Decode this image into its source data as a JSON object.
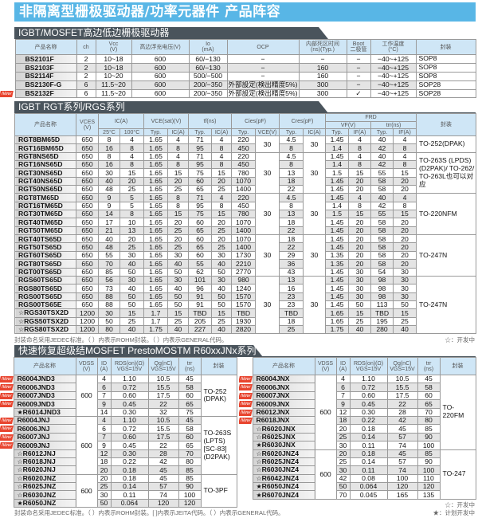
{
  "title": "非隔离型栅极驱动器/功率元器件 产品阵容",
  "gate_driver": {
    "section_title": "IGBT/MOSFET高边低边栅极驱动器",
    "headers": [
      "产品名称",
      "ch",
      "Vcc\n(V)",
      "高边浮充电压(V)",
      "Io\n(mA)",
      "OCP",
      "内部死区时间\n(ns)(Typ.)",
      "Boot\n二极管",
      "工作温度\n(°C)",
      "封装"
    ],
    "rows": [
      {
        "badge": "",
        "cells": [
          "BS2101F",
          "2",
          "10~18",
          "600",
          "60/−130",
          "−",
          "−",
          "−",
          "−40~+125",
          "SOP8"
        ]
      },
      {
        "badge": "",
        "cells": [
          "BS2103F",
          "2",
          "10~18",
          "600",
          "60/−130",
          "−",
          "160",
          "−",
          "−40~+125",
          "SOP8"
        ]
      },
      {
        "badge": "",
        "cells": [
          "BS2114F",
          "2",
          "10~20",
          "600",
          "500/−500",
          "−",
          "160",
          "−",
          "−40~+125",
          "SOP8"
        ]
      },
      {
        "badge": "",
        "cells": [
          "BS2130F-G",
          "6",
          "11.5~20",
          "600",
          "200/−350",
          "外部設定(検出精度5%)",
          "300",
          "−",
          "−40~+125",
          "SOP28"
        ]
      },
      {
        "badge": "New",
        "cells": [
          "BS2132F",
          "6",
          "11.5~20",
          "600",
          "200/−350",
          "外部設定(検出精度5%)",
          "300",
          "✓",
          "−40~+125",
          "SOP28"
        ]
      }
    ]
  },
  "igbt": {
    "section_title": "IGBT RGT系列/RGS系列",
    "headers": {
      "name": "产品名称",
      "vces": "VCES\n(V)",
      "ic": "IC(A)",
      "ic25": "25°C",
      "ic100": "100°C",
      "vcesat": "VCE(sat)(V)",
      "tf": "tf(ns)",
      "cies": "Cies(pF)",
      "cres": "Cres(pF)",
      "frd": "FRD",
      "vf": "VF(V)",
      "trr": "trr(ns)",
      "pkg": "封装",
      "typ": "Typ.",
      "ic_a": "IC(A)",
      "vce_v": "VCE(V)",
      "if_a": "IF(A)"
    },
    "groups": [
      {
        "cies_vce": "30",
        "cres_ic": "30",
        "package": "TO-252(DPAK)",
        "rows": [
          [
            "",
            "RGT8BM65D",
            "650",
            "8",
            "4",
            "1.65",
            "4",
            "71",
            "4",
            "220",
            "4.5",
            "1.45",
            "4",
            "40",
            "4"
          ],
          [
            "",
            "RGT16BM65D",
            "650",
            "16",
            "8",
            "1.65",
            "8",
            "95",
            "8",
            "450",
            "8",
            "1.4",
            "8",
            "42",
            "8"
          ]
        ]
      },
      {
        "cies_vce": "30",
        "cres_ic": "30",
        "package": "TO-263S (LPDS)(D2PAK)/ TO-262/ TO-263L也可以对应",
        "rows": [
          [
            "",
            "RGT8NS65D",
            "650",
            "8",
            "4",
            "1.65",
            "4",
            "71",
            "4",
            "220",
            "4.5",
            "1.45",
            "4",
            "40",
            "4"
          ],
          [
            "",
            "RGT16NS65D",
            "650",
            "16",
            "8",
            "1.65",
            "8",
            "95",
            "8",
            "450",
            "8",
            "1.4",
            "8",
            "42",
            "8"
          ],
          [
            "",
            "RGT30NS65D",
            "650",
            "30",
            "15",
            "1.65",
            "15",
            "75",
            "15",
            "780",
            "13",
            "1.5",
            "15",
            "55",
            "15"
          ],
          [
            "",
            "RGT40NS65D",
            "650",
            "40",
            "20",
            "1.65",
            "20",
            "60",
            "20",
            "1070",
            "18",
            "1.45",
            "20",
            "58",
            "20"
          ],
          [
            "",
            "RGT50NS65D",
            "650",
            "48",
            "25",
            "1.65",
            "25",
            "65",
            "25",
            "1400",
            "22",
            "1.45",
            "20",
            "58",
            "20"
          ]
        ]
      },
      {
        "cies_vce": "30",
        "cres_ic": "30",
        "package": "TO-220NFM",
        "rows": [
          [
            "",
            "RGT8TM65D",
            "650",
            "9",
            "5",
            "1.65",
            "8",
            "71",
            "4",
            "220",
            "4.5",
            "1.45",
            "4",
            "40",
            "4"
          ],
          [
            "",
            "RGT16TM65D",
            "650",
            "9",
            "5",
            "1.65",
            "8",
            "95",
            "8",
            "450",
            "8",
            "1.4",
            "8",
            "42",
            "8"
          ],
          [
            "",
            "RGT30TM65D",
            "650",
            "14",
            "8",
            "1.65",
            "15",
            "75",
            "15",
            "780",
            "13",
            "1.5",
            "15",
            "55",
            "15"
          ],
          [
            "",
            "RGT40TM65D",
            "650",
            "17",
            "10",
            "1.65",
            "20",
            "60",
            "20",
            "1070",
            "18",
            "1.45",
            "20",
            "58",
            "20"
          ],
          [
            "",
            "RGT50TM65D",
            "650",
            "21",
            "13",
            "1.65",
            "25",
            "65",
            "25",
            "1400",
            "22",
            "1.45",
            "20",
            "58",
            "20"
          ]
        ]
      },
      {
        "cies_vce": "30",
        "cres_ic": "30",
        "package": "TO-247N",
        "rows": [
          [
            "",
            "RGT40TS65D",
            "650",
            "40",
            "20",
            "1.65",
            "20",
            "60",
            "20",
            "1070",
            "18",
            "1.45",
            "20",
            "58",
            "20"
          ],
          [
            "",
            "RGT50TS65D",
            "650",
            "48",
            "25",
            "1.65",
            "25",
            "65",
            "25",
            "1400",
            "22",
            "1.45",
            "20",
            "58",
            "20"
          ],
          [
            "",
            "RGT60TS65D",
            "650",
            "55",
            "30",
            "1.65",
            "30",
            "60",
            "30",
            "1730",
            "29",
            "1.35",
            "20",
            "58",
            "20"
          ],
          [
            "",
            "RGT80TS65D",
            "650",
            "70",
            "40",
            "1.65",
            "40",
            "55",
            "40",
            "2210",
            "36",
            "1.35",
            "20",
            "58",
            "20"
          ],
          [
            "",
            "RGT00TS65D",
            "650",
            "85",
            "50",
            "1.65",
            "50",
            "62",
            "50",
            "2770",
            "43",
            "1.45",
            "30",
            "54",
            "30"
          ]
        ]
      },
      {
        "cies_vce": "30",
        "cres_ic": "30",
        "package": "TO-247N",
        "rows": [
          [
            "",
            "RGS60TS65D",
            "650",
            "56",
            "30",
            "1.65",
            "30",
            "101",
            "30",
            "980",
            "13",
            "1.45",
            "30",
            "98",
            "30"
          ],
          [
            "",
            "RGS80TS65D",
            "650",
            "73",
            "40",
            "1.65",
            "40",
            "96",
            "40",
            "1240",
            "16",
            "1.45",
            "30",
            "98",
            "30"
          ],
          [
            "",
            "RGS00TS65D",
            "650",
            "88",
            "50",
            "1.65",
            "50",
            "91",
            "50",
            "1570",
            "23",
            "1.45",
            "30",
            "98",
            "30"
          ],
          [
            "",
            "RGS00TS65E",
            "650",
            "88",
            "50",
            "1.65",
            "50",
            "91",
            "50",
            "1570",
            "23",
            "1.45",
            "50",
            "113",
            "50"
          ],
          [
            "☆",
            "RGS30TSX2D",
            "1200",
            "30",
            "15",
            "1.7",
            "15",
            "TBD",
            "15",
            "TBD",
            "TBD",
            "1.65",
            "15",
            "TBD",
            "15"
          ],
          [
            "☆",
            "RGS50TSX2D",
            "1200",
            "50",
            "25",
            "1.7",
            "25",
            "205",
            "25",
            "1930",
            "18",
            "1.65",
            "25",
            "195",
            "25"
          ],
          [
            "☆",
            "RGS80TSX2D",
            "1200",
            "80",
            "40",
            "1.75",
            "40",
            "227",
            "40",
            "2820",
            "25",
            "1.75",
            "40",
            "280",
            "40"
          ]
        ]
      }
    ],
    "note": "封装命名采用JEDEC标准。（ ）内表示ROHM封装。（ ）内表示GENERAL代码。",
    "legend": "☆：开发中"
  },
  "mosfet": {
    "section_title": "快速恢复超级结MOSFET PrestoMOSTM  R60xxJNx系列",
    "headers": [
      "产品名称",
      "VDSS\n(V)",
      "ID\n(A)",
      "RDS(on)(Ω)\nVGS=15V",
      "Qg(nC)\nVGS=15V",
      "trr\n(ns)",
      "封装"
    ],
    "left": [
      {
        "vdss": "600",
        "package": "TO-252 (DPAK)",
        "rows": [
          [
            "New",
            "R6004JND3",
            "4",
            "1.10",
            "10.5",
            "45"
          ],
          [
            "New",
            "R6006JND3",
            "6",
            "0.72",
            "15.5",
            "58"
          ],
          [
            "New",
            "R6007JND3",
            "7",
            "0.60",
            "17.5",
            "60"
          ],
          [
            "New",
            "R6009JND3",
            "9",
            "0.45",
            "22",
            "65"
          ],
          [
            "★",
            "R6014JND3",
            "14",
            "0.30",
            "32",
            "75"
          ]
        ]
      },
      {
        "vdss": "600",
        "package": "TO-263S (LPTS) [SC-83] (D2PAK)",
        "rows": [
          [
            "New",
            "R6004JNJ",
            "4",
            "1.10",
            "10.5",
            "45"
          ],
          [
            "New",
            "R6006JNJ",
            "6",
            "0.72",
            "15.5",
            "58"
          ],
          [
            "New",
            "R6007JNJ",
            "7",
            "0.60",
            "17.5",
            "60"
          ],
          [
            "New",
            "R6009JNJ",
            "9",
            "0.45",
            "22",
            "65"
          ],
          [
            "☆",
            "R6012JNJ",
            "12",
            "0.30",
            "28",
            "70"
          ],
          [
            "☆",
            "R6018JNJ",
            "18",
            "0.22",
            "42",
            "80"
          ],
          [
            "☆",
            "R6020JNJ",
            "20",
            "0.18",
            "45",
            "85"
          ]
        ]
      },
      {
        "vdss": "600",
        "package": "TO-3PF",
        "rows": [
          [
            "☆",
            "R6020JNZ",
            "20",
            "0.18",
            "45",
            "85"
          ],
          [
            "☆",
            "R6025JNZ",
            "25",
            "0.14",
            "57",
            "90"
          ],
          [
            "☆",
            "R6030JNZ",
            "30",
            "0.11",
            "74",
            "100"
          ],
          [
            "★",
            "R6050JNZ",
            "50",
            "0.064",
            "120",
            "120"
          ]
        ]
      }
    ],
    "right": [
      {
        "vdss": "600",
        "package": "TO-220FM",
        "rows": [
          [
            "New",
            "R6004JNX",
            "4",
            "1.10",
            "10.5",
            "45"
          ],
          [
            "New",
            "R6006JNX",
            "6",
            "0.72",
            "15.5",
            "58"
          ],
          [
            "New",
            "R6007JNX",
            "7",
            "0.60",
            "17.5",
            "60"
          ],
          [
            "New",
            "R6009JNX",
            "9",
            "0.45",
            "22",
            "65"
          ],
          [
            "New",
            "R6012JNX",
            "12",
            "0.30",
            "28",
            "70"
          ],
          [
            "New",
            "R6018JNX",
            "18",
            "0.22",
            "42",
            "80"
          ],
          [
            "☆",
            "R6020JNX",
            "20",
            "0.18",
            "45",
            "85"
          ],
          [
            "☆",
            "R6025JNX",
            "25",
            "0.14",
            "57",
            "90"
          ],
          [
            "★",
            "R6030JNX",
            "30",
            "0.11",
            "74",
            "100"
          ]
        ]
      },
      {
        "vdss": "600",
        "package": "TO-247",
        "rows": [
          [
            "☆",
            "R6020JNZ4",
            "20",
            "0.18",
            "45",
            "85"
          ],
          [
            "☆",
            "R6025JNZ4",
            "25",
            "0.14",
            "57",
            "90"
          ],
          [
            "☆",
            "R6030JNZ4",
            "30",
            "0.11",
            "74",
            "100"
          ],
          [
            "☆",
            "R6042JNZ4",
            "42",
            "0.08",
            "100",
            "110"
          ],
          [
            "★",
            "R6050JNZ4",
            "50",
            "0.064",
            "120",
            "120"
          ],
          [
            "★",
            "R6070JNZ4",
            "70",
            "0.045",
            "165",
            "135"
          ]
        ]
      }
    ],
    "note": "封装命名采用JEDEC标准。（ ）内表示ROHM封装。[ ]内表示JEITA代码。（ ）内表示GENERAL代码。",
    "legend_open": "☆：开发中",
    "legend_filled": "★：计划开发中"
  }
}
